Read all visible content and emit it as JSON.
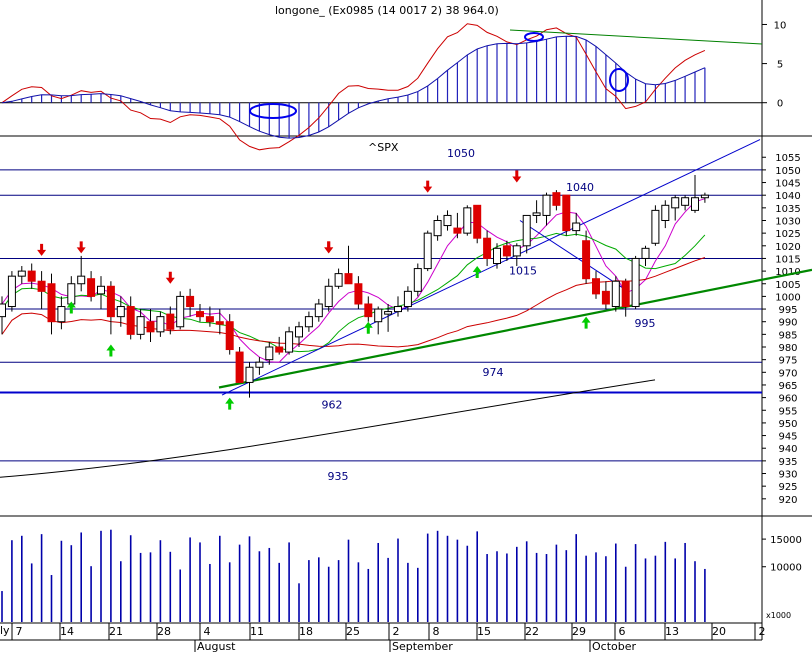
{
  "macd_panel": {
    "title": "longone_ (Ex0985 (14 0017 2) 38 964.0)",
    "yticks": [
      0,
      5,
      10
    ],
    "ylim": [
      -4,
      13
    ],
    "colors": {
      "hist": "#2222bb",
      "macd": "#cc0000",
      "signal": "#1111aa",
      "trend": "#008000",
      "highlight": "#0000ee"
    }
  },
  "price_panel": {
    "symbol_label": "^SPX",
    "yticks": [
      920,
      925,
      930,
      935,
      940,
      945,
      950,
      955,
      960,
      965,
      970,
      975,
      980,
      985,
      990,
      995,
      1000,
      1005,
      1010,
      1015,
      1020,
      1025,
      1030,
      1035,
      1040,
      1045,
      1050,
      1055
    ],
    "ylim": [
      914,
      1063
    ],
    "level_labels": [
      {
        "text": "1050",
        "value": 1050
      },
      {
        "text": "1040",
        "value": 1040
      },
      {
        "text": "1015",
        "value": 1015
      },
      {
        "text": "995",
        "value": 995
      },
      {
        "text": "974",
        "value": 974
      },
      {
        "text": "962",
        "value": 962
      },
      {
        "text": "935",
        "value": 935
      }
    ],
    "colors": {
      "up": "#ffffff",
      "down": "#dd0000",
      "outline": "#000000",
      "ma_short": "#cc00cc",
      "ma_mid": "#00aa00",
      "ma_long": "#cc0000",
      "ma_200": "#000000",
      "support": "#008800",
      "trendline": "#0000cc",
      "level": "#000080",
      "arrow_down": "#dd0000",
      "arrow_up": "#00cc00"
    }
  },
  "volume_panel": {
    "yticks": [
      10000,
      15000
    ],
    "unit_label": "x1000",
    "ylim": [
      0,
      19000
    ],
    "bar_color": "#0000aa"
  },
  "x_axis": {
    "day_labels": [
      "7",
      "14",
      "21",
      "28",
      "4",
      "11",
      "18",
      "25",
      "2",
      "8",
      "15",
      "22",
      "29",
      "6",
      "13",
      "20",
      "2"
    ],
    "month_labels": [
      "August",
      "September",
      "October"
    ],
    "edge_label": "ly"
  },
  "chart_data": {
    "type": "candlestick",
    "title": "",
    "symbol": "^SPX",
    "candles": [
      {
        "o": 992,
        "h": 1000,
        "l": 985,
        "c": 997
      },
      {
        "o": 996,
        "h": 1010,
        "l": 994,
        "c": 1008
      },
      {
        "o": 1008,
        "h": 1012,
        "l": 1005,
        "c": 1010
      },
      {
        "o": 1010,
        "h": 1013,
        "l": 1003,
        "c": 1006
      },
      {
        "o": 1006,
        "h": 1010,
        "l": 995,
        "c": 1002
      },
      {
        "o": 1005,
        "h": 1009,
        "l": 985,
        "c": 990
      },
      {
        "o": 990,
        "h": 1000,
        "l": 987,
        "c": 996
      },
      {
        "o": 997,
        "h": 1008,
        "l": 995,
        "c": 1005
      },
      {
        "o": 1005,
        "h": 1016,
        "l": 1002,
        "c": 1008
      },
      {
        "o": 1007,
        "h": 1010,
        "l": 998,
        "c": 1000
      },
      {
        "o": 1001,
        "h": 1008,
        "l": 995,
        "c": 1004
      },
      {
        "o": 1004,
        "h": 1006,
        "l": 985,
        "c": 992
      },
      {
        "o": 992,
        "h": 1000,
        "l": 988,
        "c": 996
      },
      {
        "o": 996,
        "h": 1000,
        "l": 983,
        "c": 985
      },
      {
        "o": 985,
        "h": 995,
        "l": 983,
        "c": 992
      },
      {
        "o": 990,
        "h": 995,
        "l": 982,
        "c": 986
      },
      {
        "o": 986,
        "h": 994,
        "l": 984,
        "c": 992
      },
      {
        "o": 993,
        "h": 996,
        "l": 985,
        "c": 987
      },
      {
        "o": 988,
        "h": 1002,
        "l": 987,
        "c": 1000
      },
      {
        "o": 1000,
        "h": 1003,
        "l": 992,
        "c": 996
      },
      {
        "o": 994,
        "h": 997,
        "l": 990,
        "c": 992
      },
      {
        "o": 992,
        "h": 996,
        "l": 988,
        "c": 990
      },
      {
        "o": 990,
        "h": 995,
        "l": 985,
        "c": 989
      },
      {
        "o": 990,
        "h": 993,
        "l": 977,
        "c": 979
      },
      {
        "o": 978,
        "h": 980,
        "l": 966,
        "c": 966
      },
      {
        "o": 966,
        "h": 974,
        "l": 960,
        "c": 972
      },
      {
        "o": 972,
        "h": 976,
        "l": 969,
        "c": 974
      },
      {
        "o": 975,
        "h": 982,
        "l": 973,
        "c": 980
      },
      {
        "o": 980,
        "h": 984,
        "l": 977,
        "c": 978
      },
      {
        "o": 978,
        "h": 988,
        "l": 977,
        "c": 986
      },
      {
        "o": 984,
        "h": 990,
        "l": 980,
        "c": 988
      },
      {
        "o": 988,
        "h": 994,
        "l": 986,
        "c": 992
      },
      {
        "o": 992,
        "h": 999,
        "l": 990,
        "c": 997
      },
      {
        "o": 996,
        "h": 1007,
        "l": 994,
        "c": 1004
      },
      {
        "o": 1004,
        "h": 1011,
        "l": 1003,
        "c": 1009
      },
      {
        "o": 1009,
        "h": 1020,
        "l": 1005,
        "c": 1005
      },
      {
        "o": 1005,
        "h": 1008,
        "l": 995,
        "c": 997
      },
      {
        "o": 997,
        "h": 1000,
        "l": 990,
        "c": 992
      },
      {
        "o": 990,
        "h": 996,
        "l": 985,
        "c": 995
      },
      {
        "o": 993,
        "h": 997,
        "l": 986,
        "c": 994
      },
      {
        "o": 994,
        "h": 1000,
        "l": 992,
        "c": 996
      },
      {
        "o": 996,
        "h": 1004,
        "l": 994,
        "c": 1002
      },
      {
        "o": 1002,
        "h": 1013,
        "l": 1000,
        "c": 1011
      },
      {
        "o": 1011,
        "h": 1026,
        "l": 1010,
        "c": 1025
      },
      {
        "o": 1024,
        "h": 1032,
        "l": 1022,
        "c": 1030
      },
      {
        "o": 1028,
        "h": 1034,
        "l": 1026,
        "c": 1032
      },
      {
        "o": 1027,
        "h": 1033,
        "l": 1023,
        "c": 1025
      },
      {
        "o": 1025,
        "h": 1036,
        "l": 1024,
        "c": 1035
      },
      {
        "o": 1036,
        "h": 1036,
        "l": 1021,
        "c": 1023
      },
      {
        "o": 1023,
        "h": 1026,
        "l": 1012,
        "c": 1015
      },
      {
        "o": 1013,
        "h": 1021,
        "l": 1011,
        "c": 1019
      },
      {
        "o": 1020,
        "h": 1022,
        "l": 1014,
        "c": 1016
      },
      {
        "o": 1016,
        "h": 1021,
        "l": 1012,
        "c": 1020
      },
      {
        "o": 1020,
        "h": 1032,
        "l": 1017,
        "c": 1032
      },
      {
        "o": 1032,
        "h": 1038,
        "l": 1029,
        "c": 1033
      },
      {
        "o": 1032,
        "h": 1041,
        "l": 1028,
        "c": 1040
      },
      {
        "o": 1041,
        "h": 1042,
        "l": 1034,
        "c": 1036
      },
      {
        "o": 1040,
        "h": 1040,
        "l": 1024,
        "c": 1026
      },
      {
        "o": 1026,
        "h": 1033,
        "l": 1024,
        "c": 1029
      },
      {
        "o": 1022,
        "h": 1026,
        "l": 1005,
        "c": 1007
      },
      {
        "o": 1007,
        "h": 1010,
        "l": 999,
        "c": 1001
      },
      {
        "o": 1002,
        "h": 1006,
        "l": 995,
        "c": 997
      },
      {
        "o": 996,
        "h": 1008,
        "l": 994,
        "c": 1006
      },
      {
        "o": 1006,
        "h": 1007,
        "l": 992,
        "c": 996
      },
      {
        "o": 996,
        "h": 1016,
        "l": 995,
        "c": 1015
      },
      {
        "o": 1015,
        "h": 1020,
        "l": 1012,
        "c": 1019
      },
      {
        "o": 1021,
        "h": 1036,
        "l": 1020,
        "c": 1034
      },
      {
        "o": 1030,
        "h": 1038,
        "l": 1027,
        "c": 1036
      },
      {
        "o": 1035,
        "h": 1040,
        "l": 1030,
        "c": 1039
      },
      {
        "o": 1036,
        "h": 1040,
        "l": 1034,
        "c": 1039
      },
      {
        "o": 1034,
        "h": 1048,
        "l": 1033,
        "c": 1039
      },
      {
        "o": 1039,
        "h": 1041,
        "l": 1037,
        "c": 1040
      }
    ],
    "volume": [
      5600,
      14800,
      15600,
      10600,
      15900,
      8500,
      14700,
      13900,
      16200,
      10100,
      16500,
      16700,
      11000,
      15700,
      12500,
      12600,
      14800,
      12700,
      9500,
      15300,
      14400,
      10500,
      15600,
      10800,
      14000,
      15500,
      12800,
      13400,
      10700,
      14400,
      7000,
      11200,
      11700,
      10000,
      11200,
      14900,
      10800,
      9600,
      14300,
      11600,
      15100,
      10700,
      9800,
      16000,
      16500,
      15600,
      14900,
      13800,
      16400,
      12300,
      12800,
      12400,
      13600,
      14600,
      12500,
      12300,
      14000,
      13000,
      15900,
      12000,
      12600,
      11900,
      14200,
      10000,
      14100,
      11500,
      12000,
      14500,
      11500,
      14300,
      11000,
      9600
    ]
  }
}
